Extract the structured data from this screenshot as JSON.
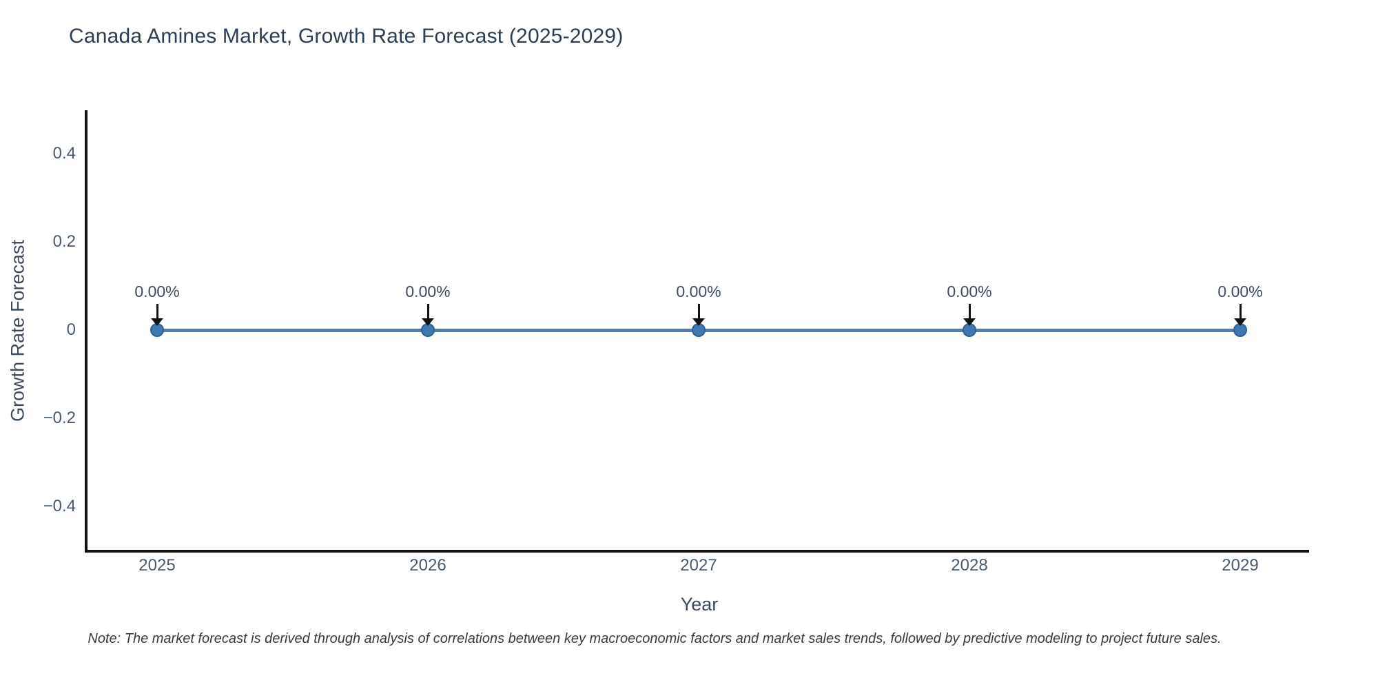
{
  "title": "Canada Amines Market, Growth Rate Forecast (2025-2029)",
  "note": "Note: The market forecast is derived through analysis of correlations between key macroeconomic factors and market sales trends, followed by predictive modeling to project future sales.",
  "chart_data": {
    "type": "line",
    "title": "Canada Amines Market, Growth Rate Forecast (2025-2029)",
    "xlabel": "Year",
    "ylabel": "Growth Rate Forecast",
    "categories": [
      "2025",
      "2026",
      "2027",
      "2028",
      "2029"
    ],
    "values": [
      0,
      0,
      0,
      0,
      0
    ],
    "point_labels": [
      "0.00%",
      "0.00%",
      "0.00%",
      "0.00%",
      "0.00%"
    ],
    "ytick_labels": [
      "0.4",
      "0.2",
      "0",
      "−0.2",
      "−0.4"
    ],
    "ylim": [
      -0.5,
      0.5
    ],
    "grid": false,
    "legend_position": "none",
    "annotation_arrows": "black, pointing down to each marker",
    "colors": {
      "line": "#4e7fae",
      "marker_fill": "#4079af",
      "marker_edge": "#2f6094",
      "axis_line": "#111111",
      "title_text": "#2c3e54",
      "axis_title_text": "#3d4a5c",
      "tick_text": "#4a5b6e",
      "annotation_text": "#3e4c5e",
      "note_text": "#3a3a3a",
      "background": "#ffffff"
    }
  }
}
